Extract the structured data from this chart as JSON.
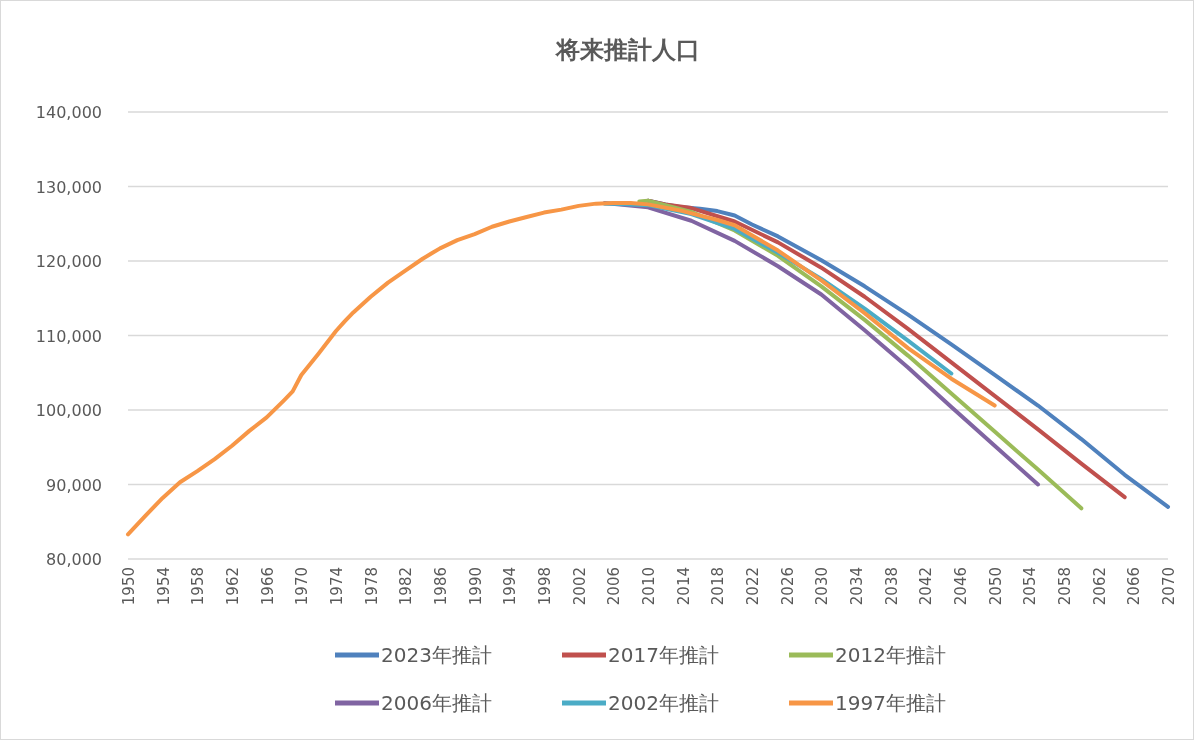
{
  "chart_data": {
    "type": "line",
    "title": "将来推計人口",
    "xlim": [
      1950,
      2070
    ],
    "xticks": [
      1950,
      1954,
      1958,
      1962,
      1966,
      1970,
      1974,
      1978,
      1982,
      1986,
      1990,
      1994,
      1998,
      2002,
      2006,
      2010,
      2014,
      2018,
      2022,
      2026,
      2030,
      2034,
      2038,
      2042,
      2046,
      2050,
      2054,
      2058,
      2062,
      2066,
      2070
    ],
    "ylim": [
      80000,
      140000
    ],
    "yticks": [
      {
        "value": 80000,
        "label": "80,000"
      },
      {
        "value": 90000,
        "label": "90,000"
      },
      {
        "value": 100000,
        "label": "100,000"
      },
      {
        "value": 110000,
        "label": "110,000"
      },
      {
        "value": 120000,
        "label": "120,000"
      },
      {
        "value": 130000,
        "label": "130,000"
      },
      {
        "value": 140000,
        "label": "140,000"
      }
    ],
    "grid": "y",
    "legend": "bottom",
    "series": [
      {
        "name": "2023年推計",
        "color": "#4f81bd",
        "x": [
          2010,
          2012,
          2014,
          2016,
          2018,
          2020,
          2022,
          2025,
          2030,
          2035,
          2040,
          2045,
          2050,
          2055,
          2060,
          2065,
          2070
        ],
        "values": [
          128100,
          127600,
          127200,
          127000,
          126700,
          126100,
          124900,
          123300,
          120100,
          116600,
          112800,
          108800,
          104700,
          100600,
          96100,
          91300,
          87000
        ]
      },
      {
        "name": "2017年推計",
        "color": "#c0504d",
        "x": [
          2010,
          2012,
          2015,
          2020,
          2025,
          2030,
          2035,
          2040,
          2045,
          2050,
          2055,
          2060,
          2065
        ],
        "values": [
          128100,
          127600,
          127100,
          125300,
          122500,
          119100,
          115200,
          110900,
          106400,
          101900,
          97400,
          92800,
          88300
        ]
      },
      {
        "name": "2012年推計",
        "color": "#9bbb59",
        "x": [
          2009,
          2010,
          2015,
          2020,
          2025,
          2030,
          2035,
          2040,
          2045,
          2050,
          2055,
          2060
        ],
        "values": [
          128000,
          128100,
          126600,
          124100,
          120700,
          116600,
          112100,
          107300,
          102200,
          97100,
          92000,
          86800
        ]
      },
      {
        "name": "2006年推計",
        "color": "#8064a2",
        "x": [
          2005,
          2010,
          2015,
          2020,
          2025,
          2030,
          2035,
          2040,
          2045,
          2050,
          2055
        ],
        "values": [
          127800,
          127200,
          125400,
          122700,
          119300,
          115500,
          110700,
          105700,
          100400,
          95200,
          90000
        ]
      },
      {
        "name": "2002年推計",
        "color": "#4bacc6",
        "x": [
          2005,
          2006,
          2010,
          2015,
          2020,
          2025,
          2030,
          2035,
          2040,
          2045
        ],
        "values": [
          127700,
          127700,
          127500,
          126300,
          124300,
          121100,
          117600,
          113600,
          109300,
          104900
        ]
      },
      {
        "name": "1997年推計",
        "color": "#f79646",
        "x": [
          1950,
          1952,
          1954,
          1956,
          1958,
          1960,
          1962,
          1964,
          1966,
          1968,
          1969,
          1970,
          1972,
          1974,
          1975,
          1976,
          1978,
          1980,
          1982,
          1984,
          1985,
          1986,
          1988,
          1990,
          1992,
          1994,
          1996,
          1998,
          2000,
          2002,
          2004,
          2006,
          2008,
          2010,
          2014,
          2018,
          2020,
          2025,
          2030,
          2035,
          2040,
          2045,
          2050
        ],
        "values": [
          83300,
          85800,
          88200,
          90300,
          91800,
          93400,
          95200,
          97200,
          99000,
          101300,
          102500,
          104700,
          107600,
          110600,
          111900,
          113100,
          115200,
          117100,
          118700,
          120300,
          121000,
          121700,
          122800,
          123600,
          124600,
          125300,
          125900,
          126500,
          126900,
          127400,
          127700,
          127800,
          127800,
          127600,
          126700,
          125500,
          124800,
          121400,
          117400,
          113000,
          108300,
          104200,
          100600
        ]
      }
    ]
  }
}
